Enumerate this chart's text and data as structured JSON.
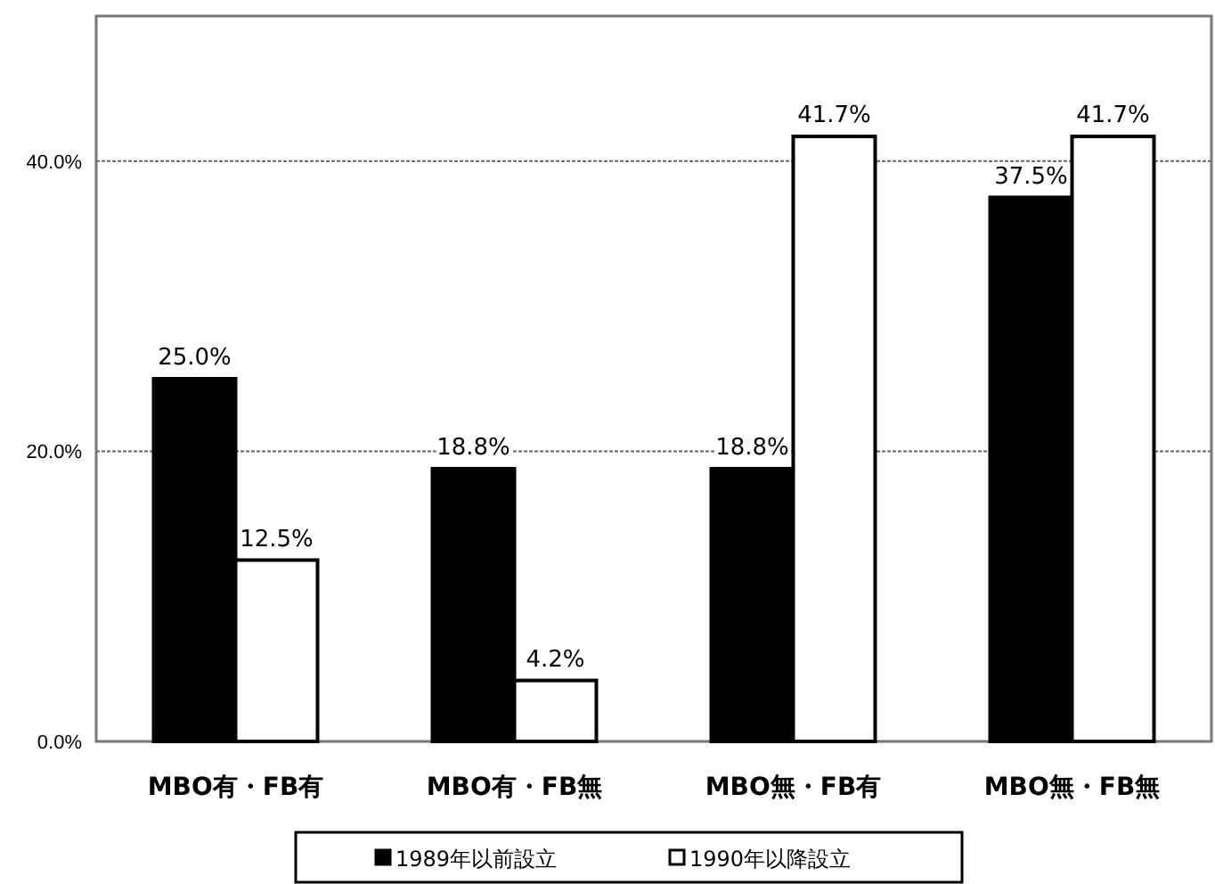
{
  "chart_data": {
    "type": "bar",
    "categories": [
      "MBO有・FB有",
      "MBO有・FB無",
      "MBO無・FB有",
      "MBO無・FB無"
    ],
    "series": [
      {
        "name": "1989年以前設立",
        "color": "#000000",
        "values": [
          25.0,
          18.8,
          18.8,
          37.5
        ],
        "value_labels": [
          "25.0%",
          "18.8%",
          "18.8%",
          "37.5%"
        ]
      },
      {
        "name": "1990年以降設立",
        "color": "#ffffff",
        "values": [
          12.5,
          4.2,
          41.7,
          41.7
        ],
        "value_labels": [
          "12.5%",
          "4.2%",
          "41.7%",
          "41.7%"
        ]
      }
    ],
    "ylim": [
      0,
      50
    ],
    "yticks": [
      {
        "value": 0,
        "label": "0.0%"
      },
      {
        "value": 20,
        "label": "20.0%"
      },
      {
        "value": 40,
        "label": "40.0%"
      }
    ],
    "grid": "y",
    "legend": "bottom"
  }
}
